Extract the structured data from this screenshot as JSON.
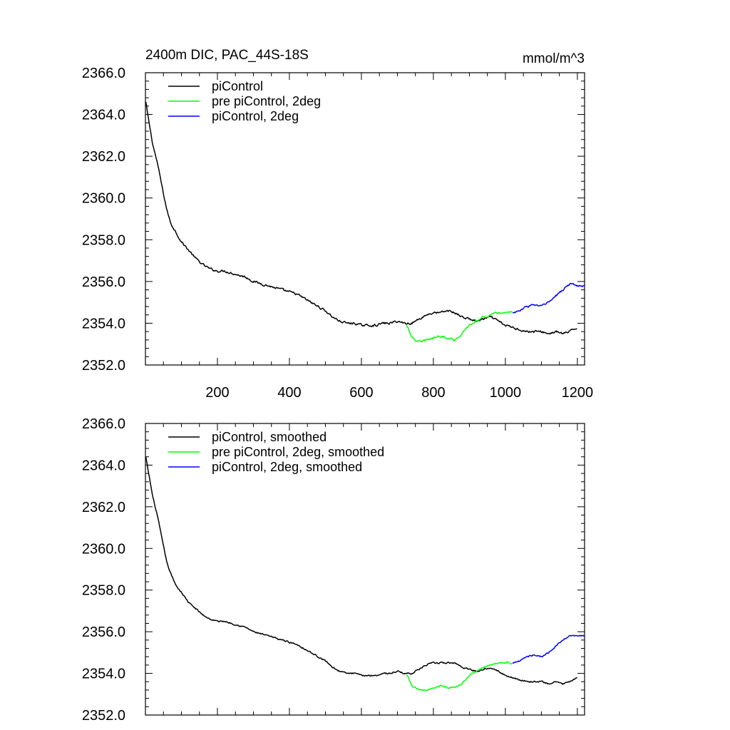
{
  "colors": {
    "black": "#000000",
    "green": "#00ff00",
    "blue": "#0000ff"
  },
  "chart_data": [
    {
      "type": "line",
      "title": "2400m DIC, PAC_44S-18S",
      "units": "mmol/m^3",
      "xlim": [
        0,
        1220
      ],
      "ylim": [
        2352.0,
        2366.0
      ],
      "xticks": [
        200,
        400,
        600,
        800,
        1000,
        1200
      ],
      "xtick_labels": [
        "200",
        "400",
        "600",
        "800",
        "1000",
        "1200"
      ],
      "yticks": [
        2352.0,
        2354.0,
        2356.0,
        2358.0,
        2360.0,
        2362.0,
        2364.0,
        2366.0
      ],
      "ytick_labels": [
        "2352.0",
        "2354.0",
        "2356.0",
        "2358.0",
        "2360.0",
        "2362.0",
        "2364.0",
        "2366.0"
      ],
      "legend_position": "top-left",
      "series": [
        {
          "name": "piControl",
          "color": "#000000",
          "x": [
            1,
            10,
            20,
            30,
            40,
            50,
            60,
            70,
            80,
            90,
            100,
            120,
            140,
            160,
            180,
            200,
            220,
            240,
            260,
            280,
            300,
            320,
            340,
            360,
            380,
            400,
            420,
            440,
            460,
            480,
            500,
            520,
            540,
            560,
            580,
            600,
            620,
            640,
            660,
            680,
            700,
            720,
            740,
            760,
            780,
            800,
            820,
            840,
            860,
            880,
            900,
            920,
            940,
            960,
            980,
            1000,
            1020,
            1040,
            1060,
            1080,
            1100,
            1120,
            1140,
            1160,
            1180,
            1200
          ],
          "y": [
            2364.6,
            2363.6,
            2362.6,
            2361.9,
            2361.1,
            2360.2,
            2359.4,
            2358.8,
            2358.5,
            2358.2,
            2357.9,
            2357.5,
            2357.1,
            2356.8,
            2356.6,
            2356.5,
            2356.5,
            2356.4,
            2356.3,
            2356.2,
            2356.0,
            2355.9,
            2355.8,
            2355.7,
            2355.6,
            2355.5,
            2355.4,
            2355.2,
            2355.0,
            2354.8,
            2354.6,
            2354.3,
            2354.1,
            2354.0,
            2354.0,
            2353.9,
            2353.9,
            2353.9,
            2354.0,
            2354.0,
            2354.1,
            2354.0,
            2354.0,
            2354.2,
            2354.4,
            2354.5,
            2354.5,
            2354.6,
            2354.5,
            2354.3,
            2354.2,
            2354.1,
            2354.2,
            2354.3,
            2354.1,
            2353.9,
            2353.8,
            2353.7,
            2353.6,
            2353.6,
            2353.6,
            2353.5,
            2353.6,
            2353.5,
            2353.6,
            2353.8
          ]
        },
        {
          "name": "pre piControl, 2deg",
          "color": "#00ff00",
          "x": [
            725,
            730,
            740,
            750,
            760,
            770,
            780,
            800,
            820,
            840,
            860,
            880,
            900,
            920,
            940,
            960,
            980,
            1000,
            1020
          ],
          "y": [
            2353.9,
            2353.8,
            2353.3,
            2353.2,
            2353.1,
            2353.1,
            2353.2,
            2353.3,
            2353.4,
            2353.3,
            2353.2,
            2353.5,
            2353.9,
            2354.1,
            2354.3,
            2354.4,
            2354.5,
            2354.5,
            2354.5
          ]
        },
        {
          "name": "piControl, 2deg",
          "color": "#0000ff",
          "x": [
            1020,
            1040,
            1060,
            1080,
            1100,
            1120,
            1140,
            1160,
            1180,
            1200,
            1220
          ],
          "y": [
            2354.5,
            2354.6,
            2354.8,
            2354.9,
            2354.8,
            2355.0,
            2355.3,
            2355.6,
            2355.9,
            2355.8,
            2355.8
          ]
        }
      ]
    },
    {
      "type": "line",
      "title": "",
      "units": "",
      "xlim": [
        0,
        1220
      ],
      "ylim": [
        2352.0,
        2366.0
      ],
      "xticks": [
        200,
        400,
        600,
        800,
        1000,
        1200
      ],
      "xtick_labels": [],
      "yticks": [
        2352.0,
        2354.0,
        2356.0,
        2358.0,
        2360.0,
        2362.0,
        2364.0,
        2366.0
      ],
      "ytick_labels": [
        "2352.0",
        "2354.0",
        "2356.0",
        "2358.0",
        "2360.0",
        "2362.0",
        "2364.0",
        "2366.0"
      ],
      "legend_position": "top-left",
      "series": [
        {
          "name": "piControl, smoothed",
          "color": "#000000",
          "x": [
            1,
            10,
            20,
            30,
            40,
            50,
            60,
            70,
            80,
            90,
            100,
            120,
            140,
            160,
            180,
            200,
            220,
            240,
            260,
            280,
            300,
            320,
            340,
            360,
            380,
            400,
            420,
            440,
            460,
            480,
            500,
            520,
            540,
            560,
            580,
            600,
            620,
            640,
            660,
            680,
            700,
            720,
            740,
            760,
            780,
            800,
            820,
            840,
            860,
            880,
            900,
            920,
            940,
            960,
            980,
            1000,
            1020,
            1040,
            1060,
            1080,
            1100,
            1120,
            1140,
            1160,
            1180,
            1200
          ],
          "y": [
            2364.4,
            2363.5,
            2362.5,
            2361.8,
            2361.0,
            2360.1,
            2359.3,
            2358.8,
            2358.4,
            2358.1,
            2357.9,
            2357.4,
            2357.1,
            2356.8,
            2356.6,
            2356.5,
            2356.5,
            2356.4,
            2356.3,
            2356.2,
            2356.0,
            2355.9,
            2355.8,
            2355.7,
            2355.6,
            2355.5,
            2355.4,
            2355.2,
            2355.0,
            2354.8,
            2354.6,
            2354.3,
            2354.1,
            2354.0,
            2354.0,
            2353.9,
            2353.9,
            2353.9,
            2354.0,
            2354.0,
            2354.1,
            2354.0,
            2354.0,
            2354.2,
            2354.4,
            2354.5,
            2354.5,
            2354.5,
            2354.5,
            2354.3,
            2354.2,
            2354.1,
            2354.2,
            2354.3,
            2354.1,
            2353.9,
            2353.8,
            2353.7,
            2353.6,
            2353.6,
            2353.6,
            2353.5,
            2353.6,
            2353.5,
            2353.6,
            2353.8
          ]
        },
        {
          "name": "pre piControl, 2deg, smoothed",
          "color": "#00ff00",
          "x": [
            725,
            730,
            740,
            750,
            760,
            770,
            780,
            800,
            820,
            840,
            860,
            880,
            900,
            920,
            940,
            960,
            980,
            1000,
            1020
          ],
          "y": [
            2353.9,
            2353.8,
            2353.4,
            2353.3,
            2353.2,
            2353.2,
            2353.2,
            2353.3,
            2353.4,
            2353.3,
            2353.3,
            2353.5,
            2353.9,
            2354.1,
            2354.3,
            2354.4,
            2354.5,
            2354.5,
            2354.5
          ]
        },
        {
          "name": "piControl, 2deg, smoothed",
          "color": "#0000ff",
          "x": [
            1020,
            1040,
            1060,
            1080,
            1100,
            1120,
            1140,
            1160,
            1180,
            1200,
            1220
          ],
          "y": [
            2354.5,
            2354.6,
            2354.8,
            2354.9,
            2354.8,
            2355.0,
            2355.3,
            2355.6,
            2355.8,
            2355.8,
            2355.8
          ]
        }
      ]
    }
  ]
}
